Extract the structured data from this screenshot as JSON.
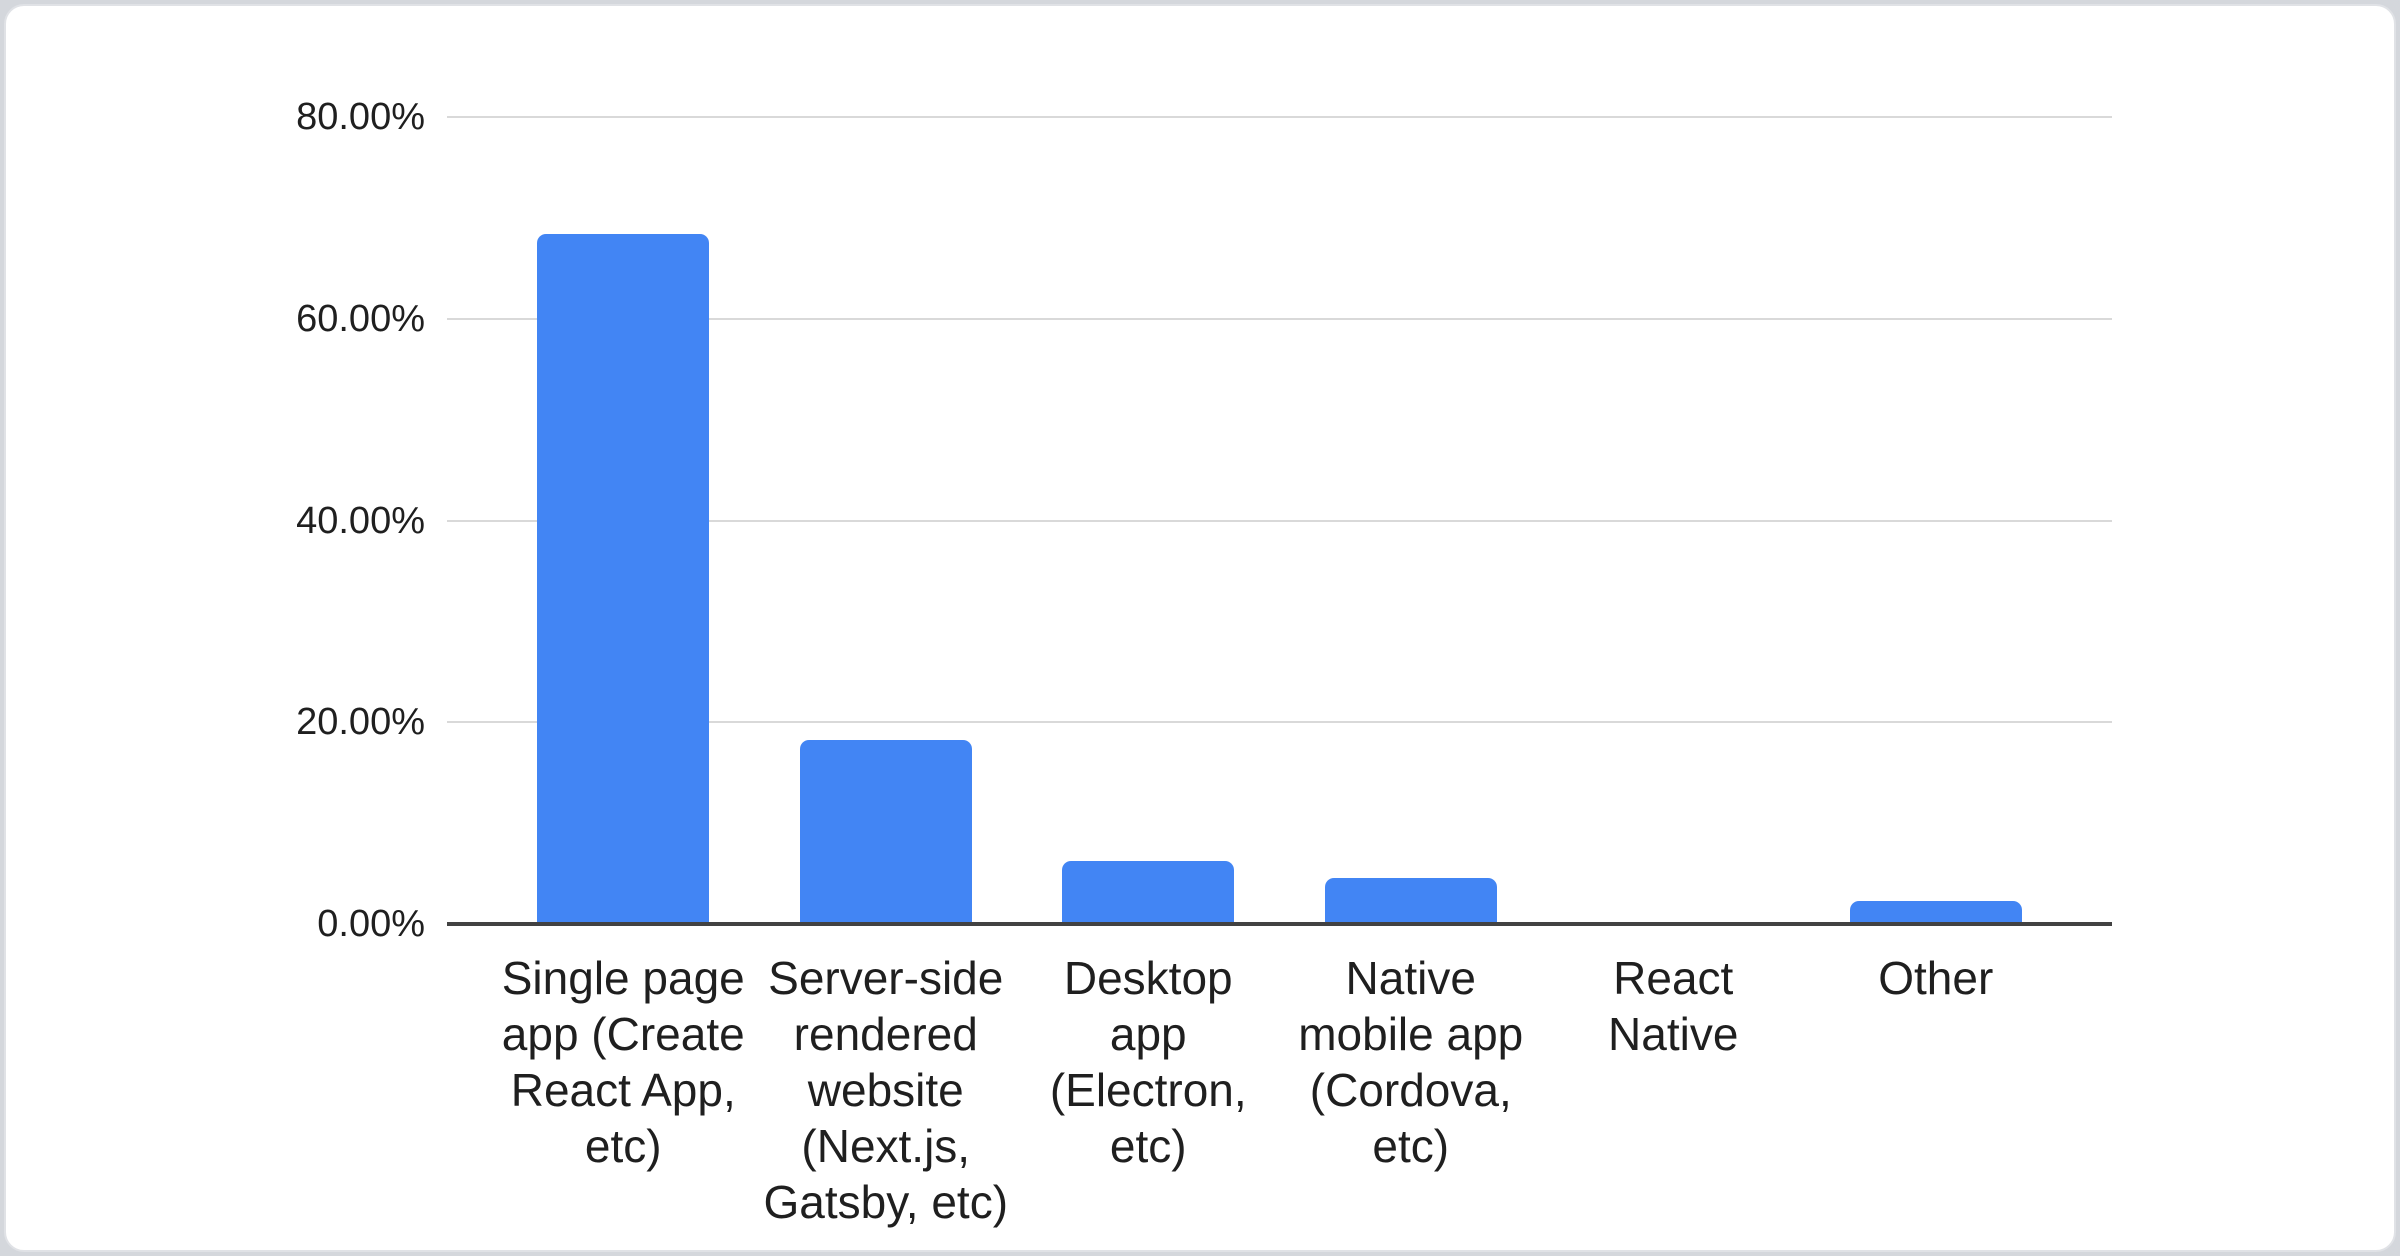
{
  "page": {
    "background_color": "#d4d7dc",
    "card": {
      "background_color": "#ffffff",
      "border_color": "#e0e2e6"
    }
  },
  "chart_data": {
    "type": "bar",
    "categories": [
      "Single page app (Create React App, etc)",
      "Server-side rendered website (Next.js, Gatsby, etc)",
      "Desktop app (Electron, etc)",
      "Native mobile app (Cordova, etc)",
      "React Native",
      "Other"
    ],
    "category_lines": [
      [
        "Single page",
        "app (Create",
        "React App,",
        "etc)"
      ],
      [
        "Server-side",
        "rendered",
        "website",
        "(Next.js,",
        "Gatsby, etc)"
      ],
      [
        "Desktop",
        "app",
        "(Electron,",
        "etc)"
      ],
      [
        "Native",
        "mobile app",
        "(Cordova,",
        "etc)"
      ],
      [
        "React",
        "Native"
      ],
      [
        "Other"
      ]
    ],
    "values": [
      68.4,
      18.2,
      6.2,
      4.6,
      0,
      2.3
    ],
    "unit": "%",
    "ylim": [
      0,
      80
    ],
    "y_ticks": [
      {
        "label": "80.00%",
        "value": 80
      },
      {
        "label": "60.00%",
        "value": 60
      },
      {
        "label": "40.00%",
        "value": 40
      },
      {
        "label": "20.00%",
        "value": 20
      },
      {
        "label": "0.00%",
        "value": 0
      }
    ],
    "grid": true,
    "legend": "none",
    "bar_color": "#4285f4",
    "gridline_color": "#d9d9d9",
    "axis_color": "#424242",
    "text_color": "#1f1f1f"
  }
}
